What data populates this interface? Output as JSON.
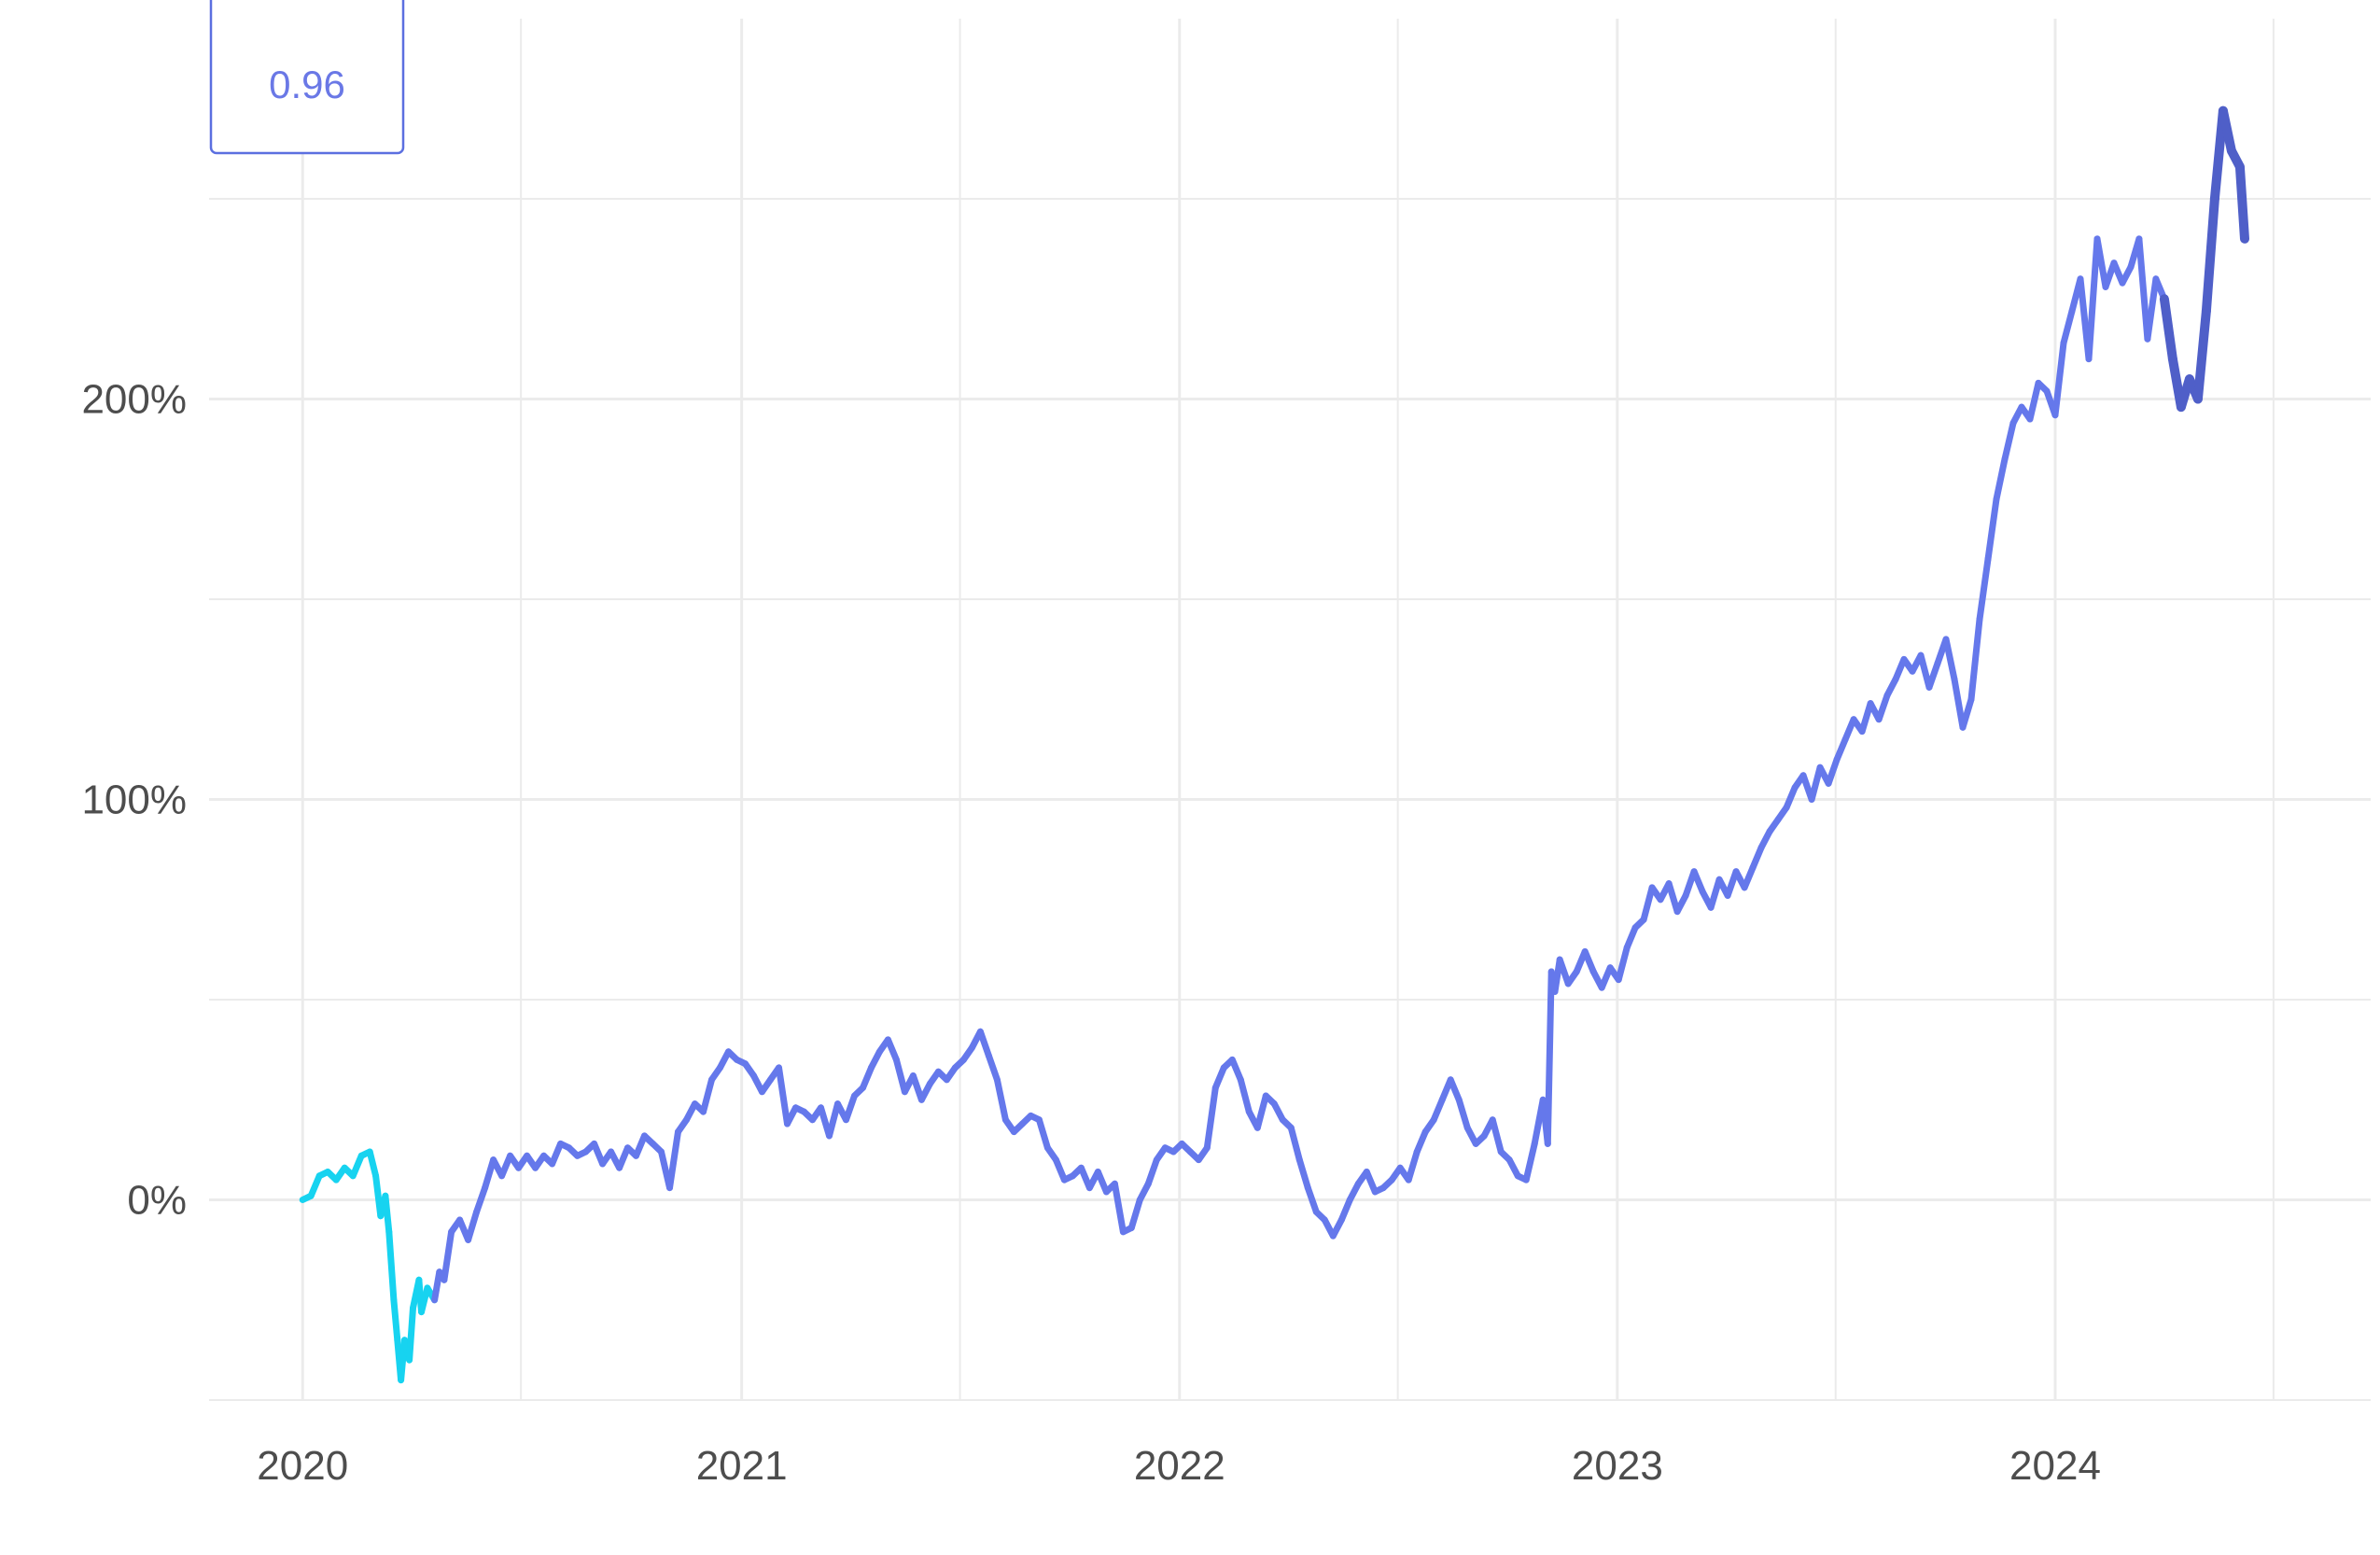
{
  "chart_data": {
    "type": "line",
    "title": "",
    "xlabel": "",
    "ylabel": "",
    "x_tick_labels": [
      "2020",
      "2021",
      "2022",
      "2023",
      "2024"
    ],
    "x_ticks": [
      "2020-01-01",
      "2021-01-01",
      "2022-01-01",
      "2023-01-01",
      "2024-01-01"
    ],
    "y_tick_labels": [
      "0%",
      "100%",
      "200%"
    ],
    "y_ticks": [
      0,
      100,
      200
    ],
    "xlim": [
      "2019-10-15",
      "2024-09-20"
    ],
    "ylim": [
      -50,
      295
    ],
    "grid": true,
    "legend": {
      "placement": "top-left",
      "label": "0.96",
      "color": "#6a78e6"
    },
    "colors": {
      "early": "#17d3f0",
      "mid": "#6578eb",
      "late": "#4f5fc8"
    },
    "series": [
      {
        "unit": "%",
        "points": [
          [
            "2020-01-01",
            0
          ],
          [
            "2020-01-08",
            1
          ],
          [
            "2020-01-15",
            6
          ],
          [
            "2020-01-22",
            7
          ],
          [
            "2020-01-29",
            5
          ],
          [
            "2020-02-05",
            8
          ],
          [
            "2020-02-12",
            6
          ],
          [
            "2020-02-19",
            11
          ],
          [
            "2020-02-26",
            12
          ],
          [
            "2020-03-02",
            6
          ],
          [
            "2020-03-06",
            -4
          ],
          [
            "2020-03-10",
            1
          ],
          [
            "2020-03-13",
            -8
          ],
          [
            "2020-03-17",
            -25
          ],
          [
            "2020-03-20",
            -35
          ],
          [
            "2020-03-23",
            -45
          ],
          [
            "2020-03-26",
            -35
          ],
          [
            "2020-03-30",
            -40
          ],
          [
            "2020-04-02",
            -27
          ],
          [
            "2020-04-07",
            -20
          ],
          [
            "2020-04-09",
            -28
          ],
          [
            "2020-04-14",
            -22
          ],
          [
            "2020-04-20",
            -25
          ],
          [
            "2020-04-24",
            -18
          ],
          [
            "2020-04-28",
            -20
          ],
          [
            "2020-05-04",
            -8
          ],
          [
            "2020-05-11",
            -5
          ],
          [
            "2020-05-18",
            -10
          ],
          [
            "2020-05-25",
            -3
          ],
          [
            "2020-06-01",
            3
          ],
          [
            "2020-06-08",
            10
          ],
          [
            "2020-06-15",
            6
          ],
          [
            "2020-06-22",
            11
          ],
          [
            "2020-06-29",
            8
          ],
          [
            "2020-07-06",
            11
          ],
          [
            "2020-07-13",
            8
          ],
          [
            "2020-07-20",
            11
          ],
          [
            "2020-07-27",
            9
          ],
          [
            "2020-08-03",
            14
          ],
          [
            "2020-08-10",
            13
          ],
          [
            "2020-08-17",
            11
          ],
          [
            "2020-08-24",
            12
          ],
          [
            "2020-08-31",
            14
          ],
          [
            "2020-09-07",
            9
          ],
          [
            "2020-09-14",
            12
          ],
          [
            "2020-09-21",
            8
          ],
          [
            "2020-09-28",
            13
          ],
          [
            "2020-10-05",
            11
          ],
          [
            "2020-10-12",
            16
          ],
          [
            "2020-10-19",
            14
          ],
          [
            "2020-10-26",
            12
          ],
          [
            "2020-11-02",
            3
          ],
          [
            "2020-11-09",
            17
          ],
          [
            "2020-11-16",
            20
          ],
          [
            "2020-11-23",
            24
          ],
          [
            "2020-11-30",
            22
          ],
          [
            "2020-12-07",
            30
          ],
          [
            "2020-12-14",
            33
          ],
          [
            "2020-12-21",
            37
          ],
          [
            "2020-12-28",
            35
          ],
          [
            "2021-01-04",
            34
          ],
          [
            "2021-01-11",
            31
          ],
          [
            "2021-01-18",
            27
          ],
          [
            "2021-01-25",
            30
          ],
          [
            "2021-02-01",
            33
          ],
          [
            "2021-02-08",
            19
          ],
          [
            "2021-02-15",
            23
          ],
          [
            "2021-02-22",
            22
          ],
          [
            "2021-03-01",
            20
          ],
          [
            "2021-03-08",
            23
          ],
          [
            "2021-03-15",
            16
          ],
          [
            "2021-03-22",
            24
          ],
          [
            "2021-03-29",
            20
          ],
          [
            "2021-04-05",
            26
          ],
          [
            "2021-04-12",
            28
          ],
          [
            "2021-04-19",
            33
          ],
          [
            "2021-04-26",
            37
          ],
          [
            "2021-05-03",
            40
          ],
          [
            "2021-05-10",
            35
          ],
          [
            "2021-05-17",
            27
          ],
          [
            "2021-05-24",
            31
          ],
          [
            "2021-05-31",
            25
          ],
          [
            "2021-06-07",
            29
          ],
          [
            "2021-06-14",
            32
          ],
          [
            "2021-06-21",
            30
          ],
          [
            "2021-06-28",
            33
          ],
          [
            "2021-07-05",
            35
          ],
          [
            "2021-07-12",
            38
          ],
          [
            "2021-07-19",
            42
          ],
          [
            "2021-07-26",
            36
          ],
          [
            "2021-08-02",
            30
          ],
          [
            "2021-08-09",
            20
          ],
          [
            "2021-08-16",
            17
          ],
          [
            "2021-08-23",
            19
          ],
          [
            "2021-08-30",
            21
          ],
          [
            "2021-09-06",
            20
          ],
          [
            "2021-09-13",
            13
          ],
          [
            "2021-09-20",
            10
          ],
          [
            "2021-09-27",
            5
          ],
          [
            "2021-10-04",
            6
          ],
          [
            "2021-10-11",
            8
          ],
          [
            "2021-10-18",
            3
          ],
          [
            "2021-10-25",
            7
          ],
          [
            "2021-11-01",
            2
          ],
          [
            "2021-11-08",
            4
          ],
          [
            "2021-11-15",
            -8
          ],
          [
            "2021-11-22",
            -7
          ],
          [
            "2021-11-29",
            0
          ],
          [
            "2021-12-06",
            4
          ],
          [
            "2021-12-13",
            10
          ],
          [
            "2021-12-20",
            13
          ],
          [
            "2021-12-27",
            12
          ],
          [
            "2022-01-03",
            14
          ],
          [
            "2022-01-10",
            12
          ],
          [
            "2022-01-17",
            10
          ],
          [
            "2022-01-24",
            13
          ],
          [
            "2022-01-31",
            28
          ],
          [
            "2022-02-07",
            33
          ],
          [
            "2022-02-14",
            35
          ],
          [
            "2022-02-21",
            30
          ],
          [
            "2022-02-28",
            22
          ],
          [
            "2022-03-07",
            18
          ],
          [
            "2022-03-14",
            26
          ],
          [
            "2022-03-21",
            24
          ],
          [
            "2022-03-28",
            20
          ],
          [
            "2022-04-04",
            18
          ],
          [
            "2022-04-11",
            10
          ],
          [
            "2022-04-18",
            3
          ],
          [
            "2022-04-25",
            -3
          ],
          [
            "2022-05-02",
            -5
          ],
          [
            "2022-05-09",
            -9
          ],
          [
            "2022-05-16",
            -5
          ],
          [
            "2022-05-23",
            0
          ],
          [
            "2022-05-30",
            4
          ],
          [
            "2022-06-06",
            7
          ],
          [
            "2022-06-13",
            2
          ],
          [
            "2022-06-20",
            3
          ],
          [
            "2022-06-27",
            5
          ],
          [
            "2022-07-04",
            8
          ],
          [
            "2022-07-11",
            5
          ],
          [
            "2022-07-18",
            12
          ],
          [
            "2022-07-25",
            17
          ],
          [
            "2022-08-01",
            20
          ],
          [
            "2022-08-08",
            25
          ],
          [
            "2022-08-15",
            30
          ],
          [
            "2022-08-22",
            25
          ],
          [
            "2022-08-29",
            18
          ],
          [
            "2022-09-05",
            14
          ],
          [
            "2022-09-12",
            16
          ],
          [
            "2022-09-19",
            20
          ],
          [
            "2022-09-26",
            12
          ],
          [
            "2022-10-03",
            10
          ],
          [
            "2022-10-10",
            6
          ],
          [
            "2022-10-17",
            5
          ],
          [
            "2022-10-24",
            14
          ],
          [
            "2022-10-31",
            25
          ],
          [
            "2022-11-04",
            14
          ],
          [
            "2022-11-07",
            57
          ],
          [
            "2022-11-10",
            52
          ],
          [
            "2022-11-14",
            60
          ],
          [
            "2022-11-21",
            54
          ],
          [
            "2022-11-28",
            57
          ],
          [
            "2022-12-05",
            62
          ],
          [
            "2022-12-12",
            57
          ],
          [
            "2022-12-19",
            53
          ],
          [
            "2022-12-26",
            58
          ],
          [
            "2023-01-02",
            55
          ],
          [
            "2023-01-09",
            63
          ],
          [
            "2023-01-16",
            68
          ],
          [
            "2023-01-23",
            70
          ],
          [
            "2023-01-30",
            78
          ],
          [
            "2023-02-06",
            75
          ],
          [
            "2023-02-13",
            79
          ],
          [
            "2023-02-20",
            72
          ],
          [
            "2023-02-27",
            76
          ],
          [
            "2023-03-06",
            82
          ],
          [
            "2023-03-13",
            77
          ],
          [
            "2023-03-20",
            73
          ],
          [
            "2023-03-27",
            80
          ],
          [
            "2023-04-03",
            76
          ],
          [
            "2023-04-10",
            82
          ],
          [
            "2023-04-17",
            78
          ],
          [
            "2023-04-24",
            83
          ],
          [
            "2023-05-01",
            88
          ],
          [
            "2023-05-08",
            92
          ],
          [
            "2023-05-15",
            95
          ],
          [
            "2023-05-22",
            98
          ],
          [
            "2023-05-29",
            103
          ],
          [
            "2023-06-05",
            106
          ],
          [
            "2023-06-12",
            100
          ],
          [
            "2023-06-19",
            108
          ],
          [
            "2023-06-26",
            104
          ],
          [
            "2023-07-03",
            110
          ],
          [
            "2023-07-10",
            115
          ],
          [
            "2023-07-17",
            120
          ],
          [
            "2023-07-24",
            117
          ],
          [
            "2023-07-31",
            124
          ],
          [
            "2023-08-07",
            120
          ],
          [
            "2023-08-14",
            126
          ],
          [
            "2023-08-21",
            130
          ],
          [
            "2023-08-28",
            135
          ],
          [
            "2023-09-04",
            132
          ],
          [
            "2023-09-11",
            136
          ],
          [
            "2023-09-18",
            128
          ],
          [
            "2023-09-25",
            134
          ],
          [
            "2023-10-02",
            140
          ],
          [
            "2023-10-09",
            130
          ],
          [
            "2023-10-16",
            118
          ],
          [
            "2023-10-23",
            125
          ],
          [
            "2023-10-30",
            145
          ],
          [
            "2023-11-06",
            160
          ],
          [
            "2023-11-13",
            175
          ],
          [
            "2023-11-20",
            185
          ],
          [
            "2023-11-27",
            194
          ],
          [
            "2023-12-04",
            198
          ],
          [
            "2023-12-11",
            195
          ],
          [
            "2023-12-18",
            204
          ],
          [
            "2023-12-25",
            202
          ],
          [
            "2024-01-01",
            196
          ],
          [
            "2024-01-08",
            214
          ],
          [
            "2024-01-15",
            222
          ],
          [
            "2024-01-22",
            230
          ],
          [
            "2024-01-29",
            210
          ],
          [
            "2024-02-05",
            240
          ],
          [
            "2024-02-12",
            228
          ],
          [
            "2024-02-19",
            234
          ],
          [
            "2024-02-26",
            229
          ],
          [
            "2024-03-04",
            233
          ],
          [
            "2024-03-11",
            240
          ],
          [
            "2024-03-18",
            215
          ],
          [
            "2024-03-25",
            230
          ],
          [
            "2024-04-01",
            225
          ],
          [
            "2024-04-08",
            210
          ],
          [
            "2024-04-15",
            198
          ],
          [
            "2024-04-22",
            205
          ],
          [
            "2024-04-29",
            200
          ],
          [
            "2024-05-06",
            222
          ],
          [
            "2024-05-13",
            250
          ],
          [
            "2024-05-20",
            272
          ],
          [
            "2024-05-27",
            262
          ],
          [
            "2024-06-03",
            258
          ],
          [
            "2024-06-07",
            240
          ]
        ]
      }
    ]
  }
}
